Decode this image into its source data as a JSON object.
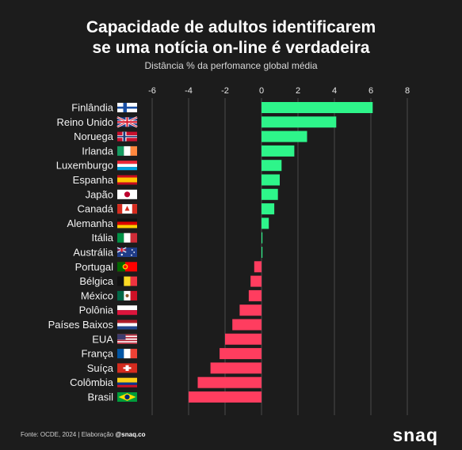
{
  "title_line1": "Capacidade de adultos identificarem",
  "title_line2": "se uma notícia on-line é verdadeira",
  "subtitle": "Distância % da perfomance global média",
  "source_text": "Fonte: OCDE, 2024 | Elaboração ",
  "source_handle": "@snaq.co",
  "brand": "snaq",
  "colors": {
    "positive": "#2ef58a",
    "negative": "#ff3d5f",
    "grid": "#4a4a4a",
    "background": "#1c1c1c"
  },
  "chart_data": {
    "type": "bar",
    "orientation": "horizontal",
    "title": "Capacidade de adultos identificarem se uma notícia on-line é verdadeira",
    "subtitle": "Distância % da perfomance global média",
    "xlim": [
      -6,
      8
    ],
    "xticks": [
      "-6",
      "-4",
      "-2",
      "0",
      "2",
      "4",
      "6",
      "8"
    ],
    "grid": true,
    "categories": [
      "Finlândia",
      "Reino Unido",
      "Noruega",
      "Irlanda",
      "Luxemburgo",
      "Espanha",
      "Japão",
      "Canadá",
      "Alemanha",
      "Itália",
      "Austrália",
      "Portugal",
      "Bélgica",
      "México",
      "Polônia",
      "Países Baixos",
      "EUA",
      "França",
      "Suíça",
      "Colômbia",
      "Brasil"
    ],
    "flags": [
      "finland-flag-icon",
      "uk-flag-icon",
      "norway-flag-icon",
      "ireland-flag-icon",
      "luxembourg-flag-icon",
      "spain-flag-icon",
      "japan-flag-icon",
      "canada-flag-icon",
      "germany-flag-icon",
      "italy-flag-icon",
      "australia-flag-icon",
      "portugal-flag-icon",
      "belgium-flag-icon",
      "mexico-flag-icon",
      "poland-flag-icon",
      "netherlands-flag-icon",
      "usa-flag-icon",
      "france-flag-icon",
      "switzerland-flag-icon",
      "colombia-flag-icon",
      "brazil-flag-icon"
    ],
    "values": [
      6.1,
      4.1,
      2.5,
      1.8,
      1.1,
      1.0,
      0.9,
      0.7,
      0.4,
      0.05,
      0.05,
      -0.4,
      -0.6,
      -0.7,
      -1.2,
      -1.6,
      -2.0,
      -2.3,
      -2.8,
      -3.5,
      -4.0
    ]
  }
}
